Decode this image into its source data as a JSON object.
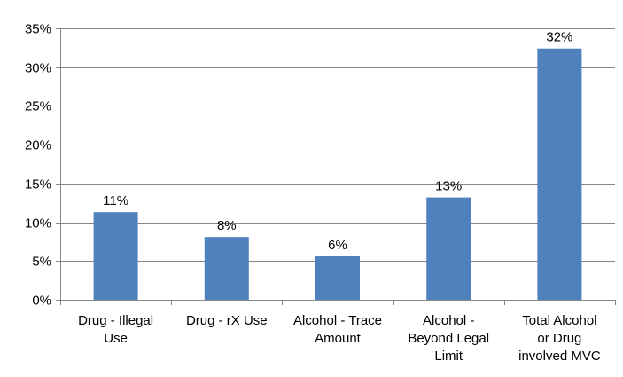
{
  "chart_data": {
    "type": "bar",
    "categories": [
      [
        "Drug - Illegal",
        "Use"
      ],
      [
        "Drug - rX Use"
      ],
      [
        "Alcohol - Trace",
        "Amount"
      ],
      [
        "Alcohol -",
        "Beyond Legal",
        "Limit"
      ],
      [
        "Total Alcohol",
        "or Drug",
        "involved MVC"
      ]
    ],
    "values": [
      11.3,
      8.1,
      5.6,
      13.2,
      32.4
    ],
    "data_labels": [
      "11%",
      "8%",
      "6%",
      "13%",
      "32%"
    ],
    "ylim": [
      0,
      35
    ],
    "yticks": [
      0,
      5,
      10,
      15,
      20,
      25,
      30,
      35
    ],
    "ytick_labels": [
      "0%",
      "5%",
      "10%",
      "15%",
      "20%",
      "25%",
      "30%",
      "35%"
    ],
    "bar_color": "#4f81bd",
    "grid": true,
    "legend": "none"
  }
}
